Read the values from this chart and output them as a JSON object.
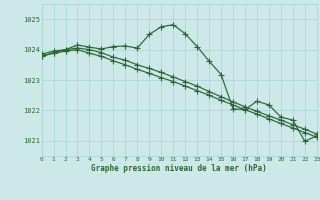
{
  "bg_color": "#cce8e8",
  "grid_color": "#a8d4d4",
  "line_color": "#2a6632",
  "xlabel": "Graphe pression niveau de la mer (hPa)",
  "xlim": [
    0,
    23
  ],
  "ylim": [
    1020.5,
    1025.5
  ],
  "yticks": [
    1021,
    1022,
    1023,
    1024,
    1025
  ],
  "xticks": [
    0,
    1,
    2,
    3,
    4,
    5,
    6,
    7,
    8,
    9,
    10,
    11,
    12,
    13,
    14,
    15,
    16,
    17,
    18,
    19,
    20,
    21,
    22,
    23
  ],
  "series1_y": [
    1023.85,
    1023.95,
    1024.0,
    1024.05,
    1024.0,
    1023.9,
    1023.75,
    1023.65,
    1023.5,
    1023.38,
    1023.25,
    1023.1,
    1022.95,
    1022.8,
    1022.62,
    1022.45,
    1022.28,
    1022.12,
    1021.97,
    1021.82,
    1021.68,
    1021.53,
    1021.38,
    1021.22
  ],
  "series2_y": [
    1023.78,
    1023.88,
    1023.95,
    1024.0,
    1023.88,
    1023.78,
    1023.63,
    1023.5,
    1023.35,
    1023.22,
    1023.08,
    1022.95,
    1022.8,
    1022.65,
    1022.5,
    1022.33,
    1022.18,
    1022.02,
    1021.88,
    1021.72,
    1021.57,
    1021.42,
    1021.27,
    1021.12
  ],
  "series3_y": [
    1023.78,
    1023.9,
    1024.0,
    1024.15,
    1024.08,
    1024.02,
    1024.1,
    1024.12,
    1024.05,
    1024.5,
    1024.75,
    1024.82,
    1024.52,
    1024.1,
    1023.62,
    1023.18,
    1022.05,
    1022.03,
    1022.3,
    1022.18,
    1021.78,
    1021.68,
    1020.98,
    1021.17
  ]
}
